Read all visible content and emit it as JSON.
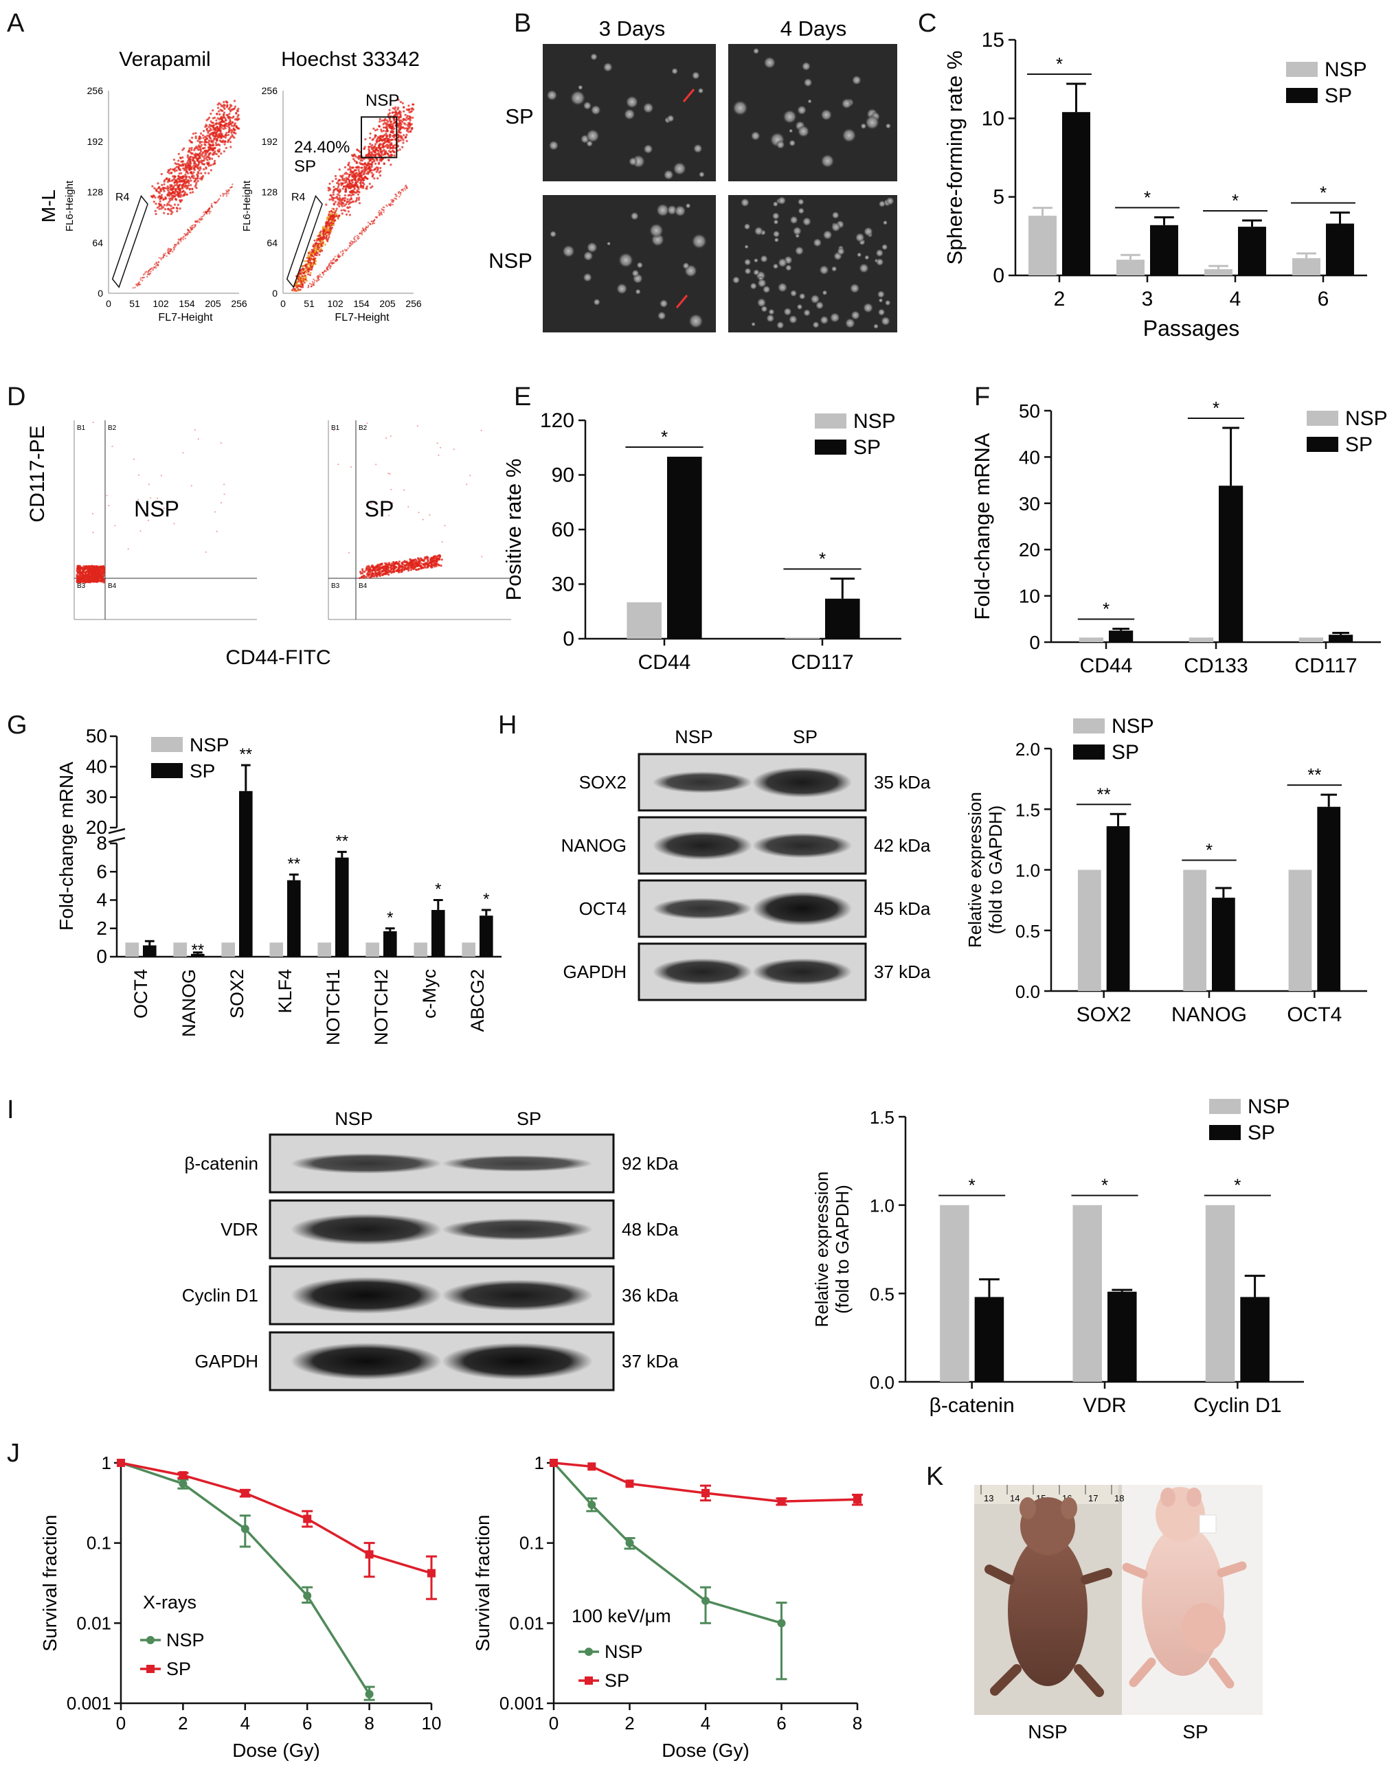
{
  "colors": {
    "nsp": "#c0c0c0",
    "sp": "#0a0a0a",
    "flow": "#e0261c",
    "nsp_line": "#4f8a5a",
    "sp_line": "#de1e2a"
  },
  "panel_labels": [
    "A",
    "B",
    "C",
    "D",
    "E",
    "F",
    "G",
    "H",
    "I",
    "J",
    "K"
  ],
  "panel_A": {
    "left_title": "Verapamil",
    "right_title": "Hoechst 33342",
    "y_axis": "M-L",
    "y_sub": "FL6-Height",
    "x_sub": "FL7-Height",
    "y_ticks": [
      "256",
      "192",
      "128",
      "64",
      "0"
    ],
    "x_ticks": [
      "0",
      "51",
      "102",
      "154",
      "205",
      "256"
    ],
    "gate": "R4",
    "nsp_label": "NSP",
    "sp_percent": "24.40%",
    "sp_label": "SP"
  },
  "panel_B": {
    "col_labels": [
      "3 Days",
      "4 Days"
    ],
    "row_labels": [
      "SP",
      "NSP"
    ]
  },
  "panel_D": {
    "y_axis": "CD117-PE",
    "x_axis": "CD44-FITC",
    "left_label": "NSP",
    "right_label": "SP",
    "quadrants_left": [
      "B1",
      "B2",
      "B3",
      "B4"
    ],
    "quadrants_right": [
      "B1",
      "B2",
      "B3",
      "B4"
    ]
  },
  "panel_H_blot": {
    "cols": [
      "NSP",
      "SP"
    ],
    "rows": [
      "SOX2",
      "NANOG",
      "OCT4",
      "GAPDH"
    ],
    "kda": [
      "35 kDa",
      "42 kDa",
      "45 kDa",
      "37 kDa"
    ]
  },
  "panel_I_blot": {
    "cols": [
      "NSP",
      "SP"
    ],
    "rows": [
      "β-catenin",
      "VDR",
      "Cyclin D1",
      "GAPDH"
    ],
    "kda": [
      "92 kDa",
      "48 kDa",
      "36 kDa",
      "37 kDa"
    ]
  },
  "panel_K": {
    "labels": [
      "NSP",
      "SP"
    ],
    "ruler_ticks": [
      "13",
      "14",
      "15",
      "16",
      "17",
      "18"
    ]
  },
  "chart_data": [
    {
      "id": "C",
      "type": "bar",
      "categories": [
        "2",
        "3",
        "4",
        "6"
      ],
      "series": [
        {
          "name": "NSP",
          "values": [
            3.8,
            1.0,
            0.4,
            1.1
          ],
          "err": [
            0.5,
            0.3,
            0.2,
            0.3
          ]
        },
        {
          "name": "SP",
          "values": [
            10.4,
            3.2,
            3.1,
            3.3
          ],
          "err": [
            1.8,
            0.5,
            0.4,
            0.7
          ]
        }
      ],
      "ylabel": "Sphere-forming rate %",
      "xlabel": "Passages",
      "ylim": [
        0,
        15
      ],
      "yticks": [
        "0",
        "5",
        "10",
        "15"
      ],
      "sig": [
        "*",
        "*",
        "*",
        "*"
      ],
      "legend": "top-right"
    },
    {
      "id": "E",
      "type": "bar",
      "categories": [
        "CD44",
        "CD117"
      ],
      "series": [
        {
          "name": "NSP",
          "values": [
            20,
            0.5
          ],
          "err": [
            0,
            0
          ]
        },
        {
          "name": "SP",
          "values": [
            100,
            22
          ],
          "err": [
            0,
            11
          ]
        }
      ],
      "ylabel": "Positive rate %",
      "ylim": [
        0,
        120
      ],
      "yticks": [
        "0",
        "30",
        "60",
        "90",
        "120"
      ],
      "sig": [
        "*",
        "*"
      ],
      "legend": "top-right"
    },
    {
      "id": "F",
      "type": "bar",
      "categories": [
        "CD44",
        "CD133",
        "CD117"
      ],
      "series": [
        {
          "name": "NSP",
          "values": [
            1,
            1,
            1
          ],
          "err": [
            0,
            0,
            0
          ]
        },
        {
          "name": "SP",
          "values": [
            2.5,
            33.8,
            1.6
          ],
          "err": [
            0.4,
            12.5,
            0.4
          ]
        }
      ],
      "ylabel": "Fold-change mRNA",
      "ylim": [
        0,
        50
      ],
      "yticks": [
        "0",
        "10",
        "20",
        "30",
        "40",
        "50"
      ],
      "sig": [
        "*",
        "*",
        ""
      ],
      "legend": "top-right"
    },
    {
      "id": "G",
      "type": "bar",
      "categories": [
        "OCT4",
        "NANOG",
        "SOX2",
        "KLF4",
        "NOTCH1",
        "NOTCH2",
        "c-Myc",
        "ABCG2"
      ],
      "series": [
        {
          "name": "NSP",
          "values": [
            1,
            1,
            1,
            1,
            1,
            1,
            1,
            1
          ],
          "err": [
            0,
            0,
            0,
            0,
            0,
            0,
            0,
            0
          ]
        },
        {
          "name": "SP",
          "values": [
            0.8,
            0.2,
            32,
            5.4,
            7.0,
            1.8,
            3.3,
            2.9
          ],
          "err": [
            0.3,
            0.1,
            8.5,
            0.4,
            0.4,
            0.2,
            0.7,
            0.4
          ]
        }
      ],
      "ylabel": "Fold-change mRNA",
      "ylim": [
        0,
        50
      ],
      "yticks_low": [
        "0",
        "2",
        "4",
        "6",
        "8"
      ],
      "yticks_high": [
        "20",
        "30",
        "40",
        "50"
      ],
      "sig": [
        "",
        "**",
        "**",
        "**",
        "**",
        "*",
        "*",
        "*"
      ],
      "legend": "top-left"
    },
    {
      "id": "H",
      "type": "bar",
      "categories": [
        "SOX2",
        "NANOG",
        "OCT4"
      ],
      "series": [
        {
          "name": "NSP",
          "values": [
            1,
            1,
            1
          ],
          "err": [
            0,
            0,
            0
          ]
        },
        {
          "name": "SP",
          "values": [
            1.36,
            0.77,
            1.52
          ],
          "err": [
            0.1,
            0.08,
            0.1
          ]
        }
      ],
      "ylabel": "Relative expression",
      "ylabel2": "(fold to GAPDH)",
      "ylim": [
        0,
        2
      ],
      "yticks": [
        "0.0",
        "0.5",
        "1.0",
        "1.5",
        "2.0"
      ],
      "sig": [
        "**",
        "*",
        "**"
      ],
      "legend": "top-left"
    },
    {
      "id": "I",
      "type": "bar",
      "categories": [
        "β-catenin",
        "VDR",
        "Cyclin D1"
      ],
      "series": [
        {
          "name": "NSP",
          "values": [
            1,
            1,
            1
          ],
          "err": [
            0,
            0,
            0
          ]
        },
        {
          "name": "SP",
          "values": [
            0.48,
            0.51,
            0.48
          ],
          "err": [
            0.1,
            0.01,
            0.12
          ]
        }
      ],
      "ylabel": "Relative expression",
      "ylabel2": "(fold to GAPDH)",
      "ylim": [
        0,
        1.5
      ],
      "yticks": [
        "0.0",
        "0.5",
        "1.0",
        "1.5"
      ],
      "sig": [
        "*",
        "*",
        "*"
      ],
      "legend": "top-right"
    },
    {
      "id": "J1",
      "type": "line",
      "title": "X-rays",
      "xlabel": "Dose (Gy)",
      "ylabel": "Survival fraction",
      "log_y": true,
      "xlim": [
        0,
        10
      ],
      "xticks": [
        "0",
        "2",
        "4",
        "6",
        "8",
        "10"
      ],
      "ylim": [
        0.001,
        1
      ],
      "yticks": [
        "1",
        "0.1",
        "0.01",
        "0.001"
      ],
      "series": [
        {
          "name": "NSP",
          "x": [
            0,
            2,
            4,
            6,
            8
          ],
          "y": [
            1,
            0.55,
            0.15,
            0.022,
            0.0013
          ],
          "err_lo": [
            1,
            0.48,
            0.09,
            0.018,
            0.0011
          ],
          "err_hi": [
            1,
            0.62,
            0.22,
            0.028,
            0.0016
          ]
        },
        {
          "name": "SP",
          "x": [
            0,
            2,
            4,
            6,
            8,
            10
          ],
          "y": [
            1,
            0.7,
            0.42,
            0.2,
            0.072,
            0.042
          ],
          "err_lo": [
            1,
            0.65,
            0.38,
            0.16,
            0.038,
            0.02
          ],
          "err_hi": [
            1,
            0.75,
            0.46,
            0.25,
            0.1,
            0.068
          ]
        }
      ],
      "legend": "bottom-left"
    },
    {
      "id": "J2",
      "type": "line",
      "title": "100 keV/μm",
      "xlabel": "Dose (Gy)",
      "ylabel": "Survival fraction",
      "log_y": true,
      "xlim": [
        0,
        8
      ],
      "xticks": [
        "0",
        "2",
        "4",
        "6",
        "8"
      ],
      "ylim": [
        0.001,
        1
      ],
      "yticks": [
        "1",
        "0.1",
        "0.01",
        "0.001"
      ],
      "series": [
        {
          "name": "NSP",
          "x": [
            0,
            1,
            2,
            4,
            6
          ],
          "y": [
            1,
            0.3,
            0.1,
            0.019,
            0.01
          ],
          "err_lo": [
            1,
            0.25,
            0.085,
            0.01,
            0.002
          ],
          "err_hi": [
            1,
            0.36,
            0.115,
            0.028,
            0.018
          ]
        },
        {
          "name": "SP",
          "x": [
            0,
            1,
            2,
            4,
            6,
            8
          ],
          "y": [
            1,
            0.9,
            0.55,
            0.42,
            0.33,
            0.35
          ],
          "err_lo": [
            1,
            0.9,
            0.55,
            0.34,
            0.3,
            0.3
          ],
          "err_hi": [
            1,
            0.9,
            0.55,
            0.52,
            0.36,
            0.4
          ]
        }
      ],
      "legend": "bottom-left"
    }
  ]
}
